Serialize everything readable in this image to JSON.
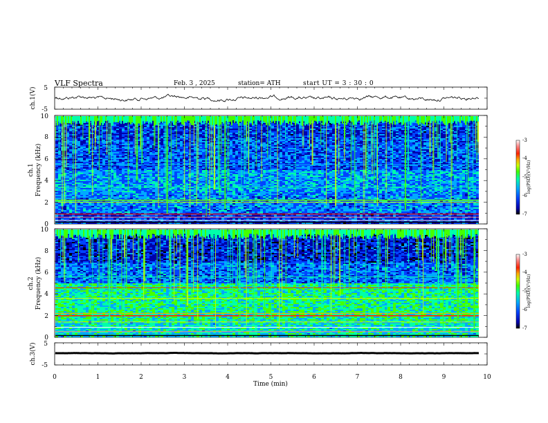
{
  "header": {
    "title": "VLF  Spectra",
    "date": "Feb. 3  , 2025",
    "station": "station= ATH",
    "start": "start  UT  =   3  : 30 : 0"
  },
  "chart_data": [
    {
      "type": "line",
      "panel": "ch1-waveform",
      "ylabel": "ch.1(V)",
      "ylim": [
        -5,
        5
      ],
      "yticks": [
        "5",
        "-5"
      ],
      "xlim": [
        0,
        10
      ],
      "series_color": "#000000",
      "approx_level": 0
    },
    {
      "type": "heatmap",
      "panel": "ch1-spectrogram",
      "ylabel": [
        "ch.1",
        "Frequency  (kHz)"
      ],
      "ylim": [
        0,
        10
      ],
      "yticks": [
        "0",
        "2",
        "4",
        "6",
        "8",
        "10"
      ],
      "xlim": [
        0,
        9.8
      ],
      "colorbar": {
        "label": "log(PSD)(V²/Hz)",
        "ticks": [
          "-3",
          "-4",
          "-5",
          "-6",
          "-7"
        ],
        "range": [
          -7,
          -3
        ]
      }
    },
    {
      "type": "heatmap",
      "panel": "ch2-spectrogram",
      "ylabel": [
        "ch.2",
        "Frequency  (kHz)"
      ],
      "ylim": [
        0,
        10
      ],
      "yticks": [
        "0",
        "2",
        "4",
        "6",
        "8",
        "10"
      ],
      "xlim": [
        0,
        9.8
      ],
      "colorbar": {
        "label": "log(PSD)(V²/Hz)",
        "ticks": [
          "-3",
          "-4",
          "-5",
          "-6",
          "-7"
        ],
        "range": [
          -7,
          -3
        ]
      }
    },
    {
      "type": "line",
      "panel": "ch3-waveform",
      "ylabel": "ch.3(V)",
      "ylim": [
        -5,
        5
      ],
      "yticks": [
        "5",
        "-5"
      ],
      "xlim": [
        0,
        10
      ],
      "series_color": "#000000",
      "approx_level": -1
    },
    {
      "type": "axis",
      "panel": "time-axis",
      "xlabel": "Time  (min)",
      "xlim": [
        0,
        10
      ],
      "xticks": [
        "0",
        "1",
        "2",
        "3",
        "4",
        "5",
        "6",
        "7",
        "8",
        "9",
        "10"
      ]
    }
  ],
  "colors": {
    "colormap": [
      "#000000",
      "#0000aa",
      "#0044ff",
      "#00aaff",
      "#00ffaa",
      "#44ff00",
      "#ccff00",
      "#ffaa00",
      "#ff2200",
      "#ff8888",
      "#ffffff"
    ]
  }
}
